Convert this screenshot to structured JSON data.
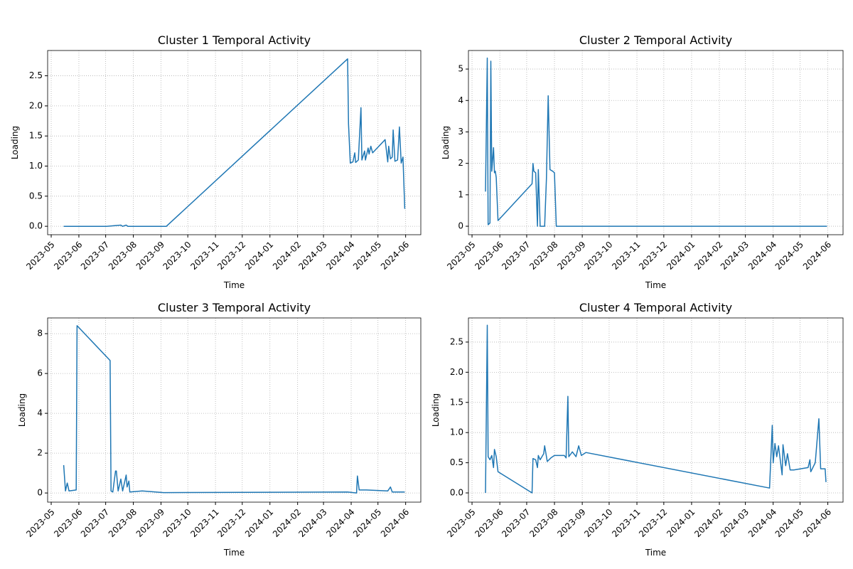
{
  "chart_data": [
    {
      "type": "line",
      "title": "Cluster 1 Temporal Activity",
      "xlabel": "Time",
      "ylabel": "Loading",
      "color": "#1f77b4",
      "grid": true,
      "xlim": [
        "2023-04-27",
        "2024-06-18"
      ],
      "xticks": [
        "2023-05",
        "2023-06",
        "2023-07",
        "2023-08",
        "2023-09",
        "2023-10",
        "2023-11",
        "2023-12",
        "2024-01",
        "2024-02",
        "2024-03",
        "2024-04",
        "2024-05",
        "2024-06"
      ],
      "ylim": [
        -0.14,
        2.92
      ],
      "yticks": [
        {
          "value": 0,
          "label": "0.0"
        },
        0.5,
        {
          "value": 1,
          "label": "1.0"
        },
        1.5,
        {
          "value": 2,
          "label": "2.0"
        },
        2.5
      ],
      "x": [
        "2023-05-15",
        "2023-06-16",
        "2023-07-02",
        "2023-07-18",
        "2023-07-20",
        "2023-07-24",
        "2023-07-26",
        "2023-09-07",
        "2024-03-28",
        "2024-03-29",
        "2024-03-31",
        "2024-04-03",
        "2024-04-05",
        "2024-04-06",
        "2024-04-09",
        "2024-04-12",
        "2024-04-13",
        "2024-04-16",
        "2024-04-17",
        "2024-04-20",
        "2024-04-21",
        "2024-04-23",
        "2024-04-25",
        "2024-05-09",
        "2024-05-12",
        "2024-05-13",
        "2024-05-15",
        "2024-05-17",
        "2024-05-18",
        "2024-05-20",
        "2024-05-23",
        "2024-05-25",
        "2024-05-27",
        "2024-05-29",
        "2024-05-31"
      ],
      "values": [
        0,
        0,
        0,
        0.02,
        0,
        0.02,
        0,
        0,
        2.78,
        1.7,
        1.05,
        1.07,
        1.22,
        1.06,
        1.1,
        1.97,
        1.1,
        1.25,
        1.1,
        1.3,
        1.2,
        1.33,
        1.22,
        1.44,
        1.07,
        1.33,
        1.12,
        1.15,
        1.6,
        1.08,
        1.1,
        1.65,
        1.05,
        1.15,
        0.29
      ]
    },
    {
      "type": "line",
      "title": "Cluster 2 Temporal Activity",
      "xlabel": "Time",
      "ylabel": "Loading",
      "color": "#1f77b4",
      "grid": true,
      "xlim": [
        "2023-04-27",
        "2024-06-18"
      ],
      "xticks": [
        "2023-05",
        "2023-06",
        "2023-07",
        "2023-08",
        "2023-09",
        "2023-10",
        "2023-11",
        "2023-12",
        "2024-01",
        "2024-02",
        "2024-03",
        "2024-04",
        "2024-05",
        "2024-06"
      ],
      "ylim": [
        -0.27,
        5.59
      ],
      "yticks": [
        0,
        1,
        2,
        3,
        4,
        5
      ],
      "x": [
        "2023-05-16",
        "2023-05-18",
        "2023-05-19",
        "2023-05-21",
        "2023-05-22",
        "2023-05-23",
        "2023-05-25",
        "2023-05-26",
        "2023-05-27",
        "2023-05-28",
        "2023-05-30",
        "2023-07-07",
        "2023-07-08",
        "2023-07-09",
        "2023-07-11",
        "2023-07-13",
        "2023-07-14",
        "2023-07-16",
        "2023-07-21",
        "2023-07-23",
        "2023-07-25",
        "2023-07-27",
        "2023-07-30",
        "2023-08-01",
        "2023-08-03",
        "2024-05-31"
      ],
      "values": [
        1.1,
        5.35,
        0.05,
        0.1,
        5.25,
        1.75,
        2.5,
        1.7,
        1.75,
        1.55,
        0.18,
        1.35,
        2.0,
        1.75,
        1.7,
        0,
        1.8,
        0,
        0,
        1.5,
        4.15,
        1.8,
        1.75,
        1.7,
        0,
        0
      ]
    },
    {
      "type": "line",
      "title": "Cluster 3 Temporal Activity",
      "xlabel": "Time",
      "ylabel": "Loading",
      "color": "#1f77b4",
      "grid": true,
      "xlim": [
        "2023-04-27",
        "2024-06-18"
      ],
      "xticks": [
        "2023-05",
        "2023-06",
        "2023-07",
        "2023-08",
        "2023-09",
        "2023-10",
        "2023-11",
        "2023-12",
        "2024-01",
        "2024-02",
        "2024-03",
        "2024-04",
        "2024-05",
        "2024-06"
      ],
      "ylim": [
        -0.46,
        8.79
      ],
      "yticks": [
        0,
        2,
        4,
        6,
        8
      ],
      "x": [
        "2023-05-15",
        "2023-05-17",
        "2023-05-19",
        "2023-05-21",
        "2023-05-29",
        "2023-05-30",
        "2023-07-06",
        "2023-07-07",
        "2023-07-09",
        "2023-07-12",
        "2023-07-13",
        "2023-07-15",
        "2023-07-18",
        "2023-07-20",
        "2023-07-24",
        "2023-07-25",
        "2023-07-27",
        "2023-07-28",
        "2023-08-11",
        "2023-09-04",
        "2024-03-28",
        "2024-04-07",
        "2024-04-08",
        "2024-04-10",
        "2024-04-18",
        "2024-05-12",
        "2024-05-15",
        "2024-05-17",
        "2024-05-31"
      ],
      "values": [
        1.4,
        0.1,
        0.5,
        0.1,
        0.15,
        8.4,
        6.65,
        0.1,
        0.05,
        1.1,
        1.1,
        0.1,
        0.7,
        0.1,
        0.9,
        0.3,
        0.6,
        0.05,
        0.1,
        0.02,
        0.05,
        0,
        0.85,
        0.15,
        0.15,
        0.1,
        0.3,
        0.05,
        0.05
      ]
    },
    {
      "type": "line",
      "title": "Cluster 4 Temporal Activity",
      "xlabel": "Time",
      "ylabel": "Loading",
      "color": "#1f77b4",
      "grid": true,
      "xlim": [
        "2023-04-27",
        "2024-06-18"
      ],
      "xticks": [
        "2023-05",
        "2023-06",
        "2023-07",
        "2023-08",
        "2023-09",
        "2023-10",
        "2023-11",
        "2023-12",
        "2024-01",
        "2024-02",
        "2024-03",
        "2024-04",
        "2024-05",
        "2024-06"
      ],
      "ylim": [
        -0.153,
        2.9
      ],
      "yticks": [
        {
          "value": 0,
          "label": "0.0"
        },
        0.5,
        {
          "value": 1,
          "label": "1.0"
        },
        1.5,
        {
          "value": 2,
          "label": "2.0"
        },
        2.5
      ],
      "x": [
        "2023-05-16",
        "2023-05-18",
        "2023-05-19",
        "2023-05-21",
        "2023-05-23",
        "2023-05-25",
        "2023-05-26",
        "2023-05-28",
        "2023-05-30",
        "2023-07-07",
        "2023-07-08",
        "2023-07-11",
        "2023-07-13",
        "2023-07-14",
        "2023-07-16",
        "2023-07-20",
        "2023-07-21",
        "2023-07-24",
        "2023-07-28",
        "2023-08-01",
        "2023-08-12",
        "2023-08-14",
        "2023-08-16",
        "2023-08-17",
        "2023-08-21",
        "2023-08-25",
        "2023-08-28",
        "2023-08-31",
        "2023-09-05",
        "2024-03-28",
        "2024-03-31",
        "2024-04-01",
        "2024-04-03",
        "2024-04-05",
        "2024-04-07",
        "2024-04-11",
        "2024-04-12",
        "2024-04-15",
        "2024-04-17",
        "2024-04-20",
        "2024-04-24",
        "2024-05-10",
        "2024-05-12",
        "2024-05-13",
        "2024-05-18",
        "2024-05-22",
        "2024-05-24",
        "2024-05-29",
        "2024-05-30"
      ],
      "values": [
        0,
        2.78,
        0.6,
        0.55,
        0.62,
        0.42,
        0.72,
        0.6,
        0.35,
        0,
        0.57,
        0.55,
        0.42,
        0.62,
        0.55,
        0.65,
        0.78,
        0.52,
        0.58,
        0.62,
        0.62,
        0.58,
        1.6,
        0.6,
        0.68,
        0.6,
        0.78,
        0.62,
        0.67,
        0.08,
        1.12,
        0.5,
        0.82,
        0.6,
        0.78,
        0.3,
        0.8,
        0.45,
        0.65,
        0.38,
        0.38,
        0.42,
        0.55,
        0.35,
        0.5,
        1.23,
        0.4,
        0.4,
        0.18
      ]
    }
  ]
}
